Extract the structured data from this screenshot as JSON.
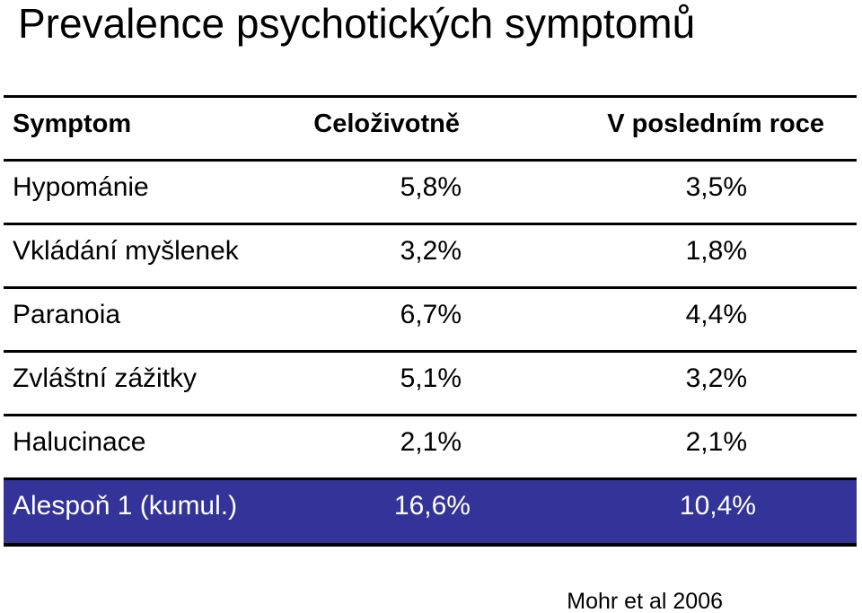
{
  "title": "Prevalence psychotických symptomů",
  "table": {
    "headers": [
      "Symptom",
      "Celoživotně",
      "V posledním roce"
    ],
    "rows": [
      [
        "Hypománie",
        "5,8%",
        "3,5%"
      ],
      [
        "Vkládání myšlenek",
        "3,2%",
        "1,8%"
      ],
      [
        "Paranoia",
        "6,7%",
        "4,4%"
      ],
      [
        "Zvláštní zážitky",
        "5,1%",
        "3,2%"
      ],
      [
        "Halucinace",
        "2,1%",
        "2,1%"
      ]
    ],
    "summary": [
      "Alespoň 1 (kumul.)",
      "16,6%",
      "10,4%"
    ]
  },
  "source": "Mohr et al 2006",
  "colors": {
    "summary_background": "#333399",
    "summary_text": "#ffffff"
  }
}
